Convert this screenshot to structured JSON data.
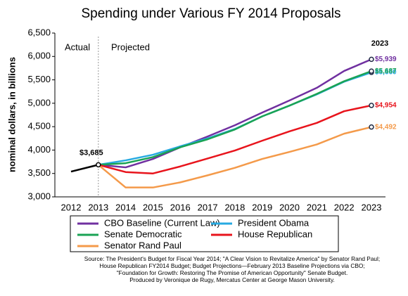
{
  "chart_data": {
    "type": "line",
    "title": "Spending under Various FY 2014 Proposals",
    "y_label": "nominal dollars, in billions",
    "annotations": [
      "Actual",
      "Projected",
      "2023"
    ],
    "categories": [
      "2012",
      "2013",
      "2014",
      "2015",
      "2016",
      "2017",
      "2018",
      "2019",
      "2020",
      "2021",
      "2022",
      "2023"
    ],
    "series": [
      {
        "color": "#000000",
        "values": [
          3540,
          3685,
          null,
          null,
          null,
          null,
          null,
          null,
          null,
          null,
          null,
          null
        ],
        "value_labels": [
          null,
          "$3,685",
          null,
          null,
          null,
          null,
          null,
          null,
          null,
          null,
          null,
          null
        ]
      },
      {
        "name": "CBO Baseline (Current Law)",
        "color": "#7030a0",
        "values": [
          null,
          3685,
          3630,
          3810,
          4060,
          4290,
          4530,
          4800,
          5060,
          5330,
          5690,
          5939
        ],
        "value_labels": [
          null,
          null,
          null,
          null,
          null,
          null,
          null,
          null,
          null,
          null,
          null,
          "$5,939"
        ]
      },
      {
        "name": "President Obama",
        "color": "#27aae1",
        "values": [
          null,
          3685,
          3780,
          3900,
          4080,
          4250,
          4450,
          4720,
          4950,
          5190,
          5460,
          5660
        ],
        "value_labels": [
          null,
          null,
          null,
          null,
          null,
          null,
          null,
          null,
          null,
          null,
          null,
          "$5,660"
        ]
      },
      {
        "name": "Senate Democratic",
        "color": "#1aa354",
        "values": [
          null,
          3685,
          3720,
          3850,
          4060,
          4230,
          4440,
          4720,
          4950,
          5200,
          5470,
          5687
        ],
        "value_labels": [
          null,
          null,
          null,
          null,
          null,
          null,
          null,
          null,
          null,
          null,
          null,
          "$5,687"
        ]
      },
      {
        "name": "House Republican",
        "color": "#e8141c",
        "values": [
          null,
          3685,
          3530,
          3500,
          3650,
          3820,
          3990,
          4200,
          4400,
          4580,
          4830,
          4954
        ],
        "value_labels": [
          null,
          null,
          null,
          null,
          null,
          null,
          null,
          null,
          null,
          null,
          null,
          "$4,954"
        ]
      },
      {
        "name": "Senator Rand Paul",
        "color": "#f49a4a",
        "values": [
          null,
          3685,
          3200,
          3200,
          3310,
          3460,
          3620,
          3810,
          3960,
          4120,
          4350,
          4492
        ],
        "value_labels": [
          null,
          null,
          null,
          null,
          null,
          null,
          null,
          null,
          null,
          null,
          null,
          "$4,492"
        ]
      }
    ],
    "ylim": [
      3000,
      6500
    ],
    "yticks": [
      {
        "value": 3000,
        "label": "3,000"
      },
      {
        "value": 3500,
        "label": "3,500"
      },
      {
        "value": 4000,
        "label": "4,000"
      },
      {
        "value": 4500,
        "label": "4,500"
      },
      {
        "value": 5000,
        "label": "5,000"
      },
      {
        "value": 5500,
        "label": "5,500"
      },
      {
        "value": 6000,
        "label": "6,000"
      },
      {
        "value": 6500,
        "label": "6,500"
      }
    ],
    "grid": false,
    "source": [
      "Source: The President's Budget for Fiscal Year 2014; \"A Clear Vision to Revitalize America\" by Senator Rand Paul;",
      "House Republican FY2014 Budget; Budget Projections—February 2013 Baseline Projections via CBO;",
      "\"Foundation for Growth: Restoring The Promise of American Opportunity\" Senate Budget.",
      "Produced by Veronique de Rugy, Mercatus Center at George Mason University."
    ]
  }
}
